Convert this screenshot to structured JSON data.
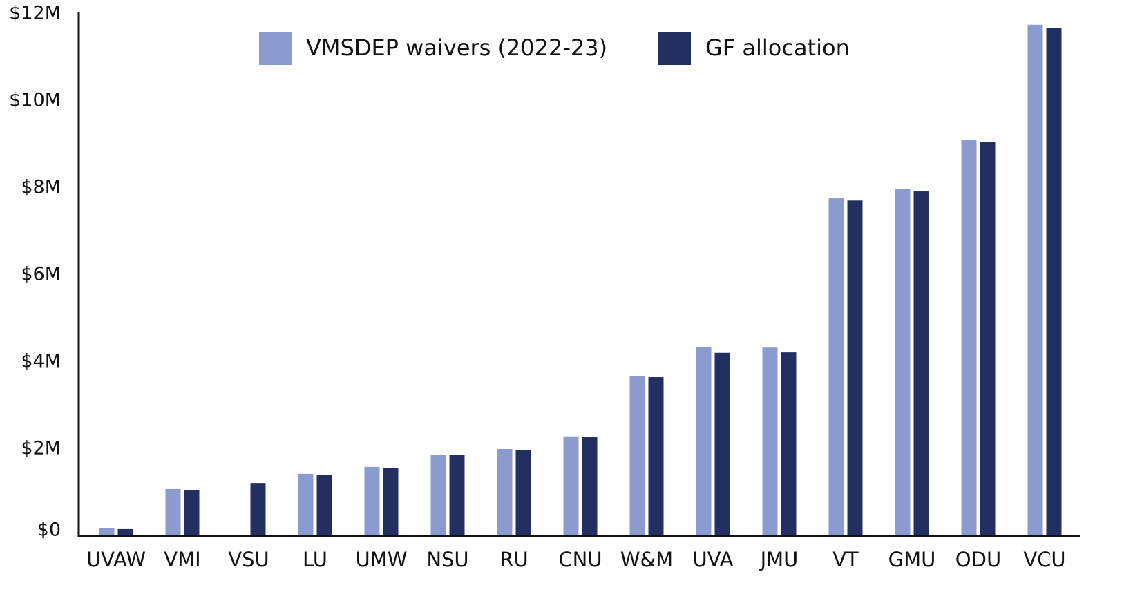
{
  "chart_data": {
    "type": "bar",
    "categories": [
      "UVAW",
      "VMI",
      "VSU",
      "LU",
      "UMW",
      "NSU",
      "RU",
      "CNU",
      "W&M",
      "UVA",
      "JMU",
      "VT",
      "GMU",
      "ODU",
      "VCU"
    ],
    "series": [
      {
        "name": "VMSDEP waivers (2022-23)",
        "color": "#8b9bd0",
        "values": [
          190000,
          1080000,
          null,
          1430000,
          1590000,
          1870000,
          2000000,
          2290000,
          3670000,
          4350000,
          4330000,
          7760000,
          7970000,
          9110000,
          11750000
        ]
      },
      {
        "name": "GF allocation",
        "color": "#232f61",
        "values": [
          160000,
          1060000,
          1220000,
          1410000,
          1570000,
          1860000,
          1980000,
          2270000,
          3650000,
          4210000,
          4220000,
          7710000,
          7920000,
          9060000,
          11680000
        ]
      }
    ],
    "ylim": [
      0,
      12000000
    ],
    "yticks": [
      {
        "value": 0,
        "label": "$0"
      },
      {
        "value": 2000000,
        "label": "$2M"
      },
      {
        "value": 4000000,
        "label": "$4M"
      },
      {
        "value": 6000000,
        "label": "$6M"
      },
      {
        "value": 8000000,
        "label": "$8M"
      },
      {
        "value": 10000000,
        "label": "$10M"
      },
      {
        "value": 12000000,
        "label": "$12M"
      }
    ],
    "grid": false
  }
}
